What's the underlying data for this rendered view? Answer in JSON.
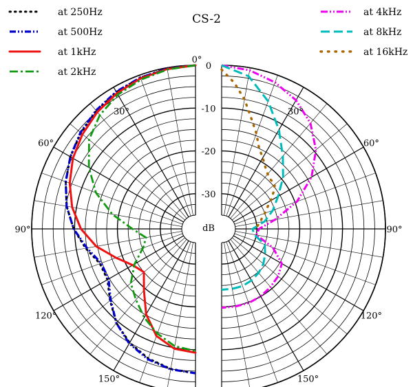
{
  "chart_data": {
    "type": "line",
    "subtype": "polar",
    "title": "CS-2",
    "radial_unit": "dB",
    "radial_ticks": [
      "0",
      "-10",
      "-20",
      "-30"
    ],
    "radial_range": [
      -35,
      0
    ],
    "angle_ticks_left": [
      "0°",
      "30°",
      "60°",
      "90°",
      "120°",
      "150°"
    ],
    "angle_ticks_right": [
      "0°",
      "30°",
      "60°",
      "90°",
      "120°",
      "150°"
    ],
    "grid": true,
    "legend_left": [
      "at 250Hz",
      "at 500Hz",
      "at 1kHz",
      "at 2kHz"
    ],
    "legend_right": [
      "at 4kHz",
      "at 8kHz",
      "at 16kHz"
    ],
    "series": [
      {
        "name": "at 250Hz",
        "side": "left",
        "color": "#000000",
        "angles": [
          0,
          10,
          20,
          30,
          40,
          50,
          60,
          70,
          80,
          90,
          100,
          110,
          120,
          130,
          140,
          150,
          160,
          170,
          180
        ],
        "values": [
          0,
          -0.2,
          -0.6,
          -1.3,
          -2.2,
          -3.3,
          -4.5,
          -6,
          -7.7,
          -9.8,
          -12.2,
          -14.5,
          -14.5,
          -12.2,
          -9.5,
          -7.5,
          -6,
          -5,
          -4.5
        ]
      },
      {
        "name": "at 500Hz",
        "side": "left",
        "color": "#0000cc",
        "angles": [
          0,
          10,
          20,
          30,
          40,
          50,
          60,
          70,
          80,
          90,
          100,
          110,
          120,
          130,
          140,
          150,
          160,
          170,
          180
        ],
        "values": [
          0,
          -0.2,
          -0.6,
          -1.2,
          -2.1,
          -3.2,
          -4.5,
          -6,
          -7.7,
          -9.8,
          -12.5,
          -14.8,
          -14.8,
          -12.4,
          -9.5,
          -7.3,
          -5.8,
          -4.9,
          -4.5
        ]
      },
      {
        "name": "at 1kHz",
        "side": "left",
        "color": "#ee1111",
        "angles": [
          0,
          10,
          20,
          30,
          40,
          50,
          60,
          70,
          80,
          90,
          100,
          110,
          120,
          130,
          140,
          150,
          160,
          170,
          180
        ],
        "values": [
          0,
          -0.3,
          -0.8,
          -1.6,
          -2.6,
          -3.8,
          -5.2,
          -7,
          -9,
          -11.5,
          -14.7,
          -18.5,
          -21.3,
          -22.5,
          -19.5,
          -15.2,
          -11.6,
          -9.8,
          -9.3
        ]
      },
      {
        "name": "at 2kHz",
        "side": "left",
        "color": "#119911",
        "angles": [
          0,
          10,
          20,
          30,
          40,
          50,
          60,
          70,
          80,
          90,
          100,
          110,
          120,
          130,
          140,
          150,
          160,
          170,
          180
        ],
        "values": [
          0,
          -0.4,
          -1.1,
          -2,
          -3.5,
          -5.8,
          -9.5,
          -13.5,
          -18.5,
          -23.5,
          -26.5,
          -25.2,
          -21.8,
          -18.5,
          -16.6,
          -14.3,
          -12.2,
          -10.4,
          -9.7
        ]
      },
      {
        "name": "at 4kHz",
        "side": "right",
        "color": "#ee00ee",
        "angles": [
          0,
          10,
          20,
          30,
          40,
          50,
          60,
          70,
          80,
          90,
          100,
          110,
          120,
          130,
          140,
          150,
          160,
          170,
          180
        ],
        "values": [
          0,
          -0.6,
          -1.8,
          -3.5,
          -6,
          -9.5,
          -14,
          -19.5,
          -25.5,
          -29.5,
          -30,
          -25.5,
          -22,
          -21,
          -20.5,
          -20,
          -19.8,
          -19.8,
          -19.8
        ]
      },
      {
        "name": "at 8kHz",
        "side": "right",
        "color": "#00bbbb",
        "angles": [
          0,
          10,
          20,
          30,
          40,
          50,
          60,
          70,
          80,
          90,
          100,
          110,
          120,
          130,
          140,
          150,
          160,
          170,
          180
        ],
        "values": [
          0,
          -2,
          -6.5,
          -11.5,
          -16,
          -19.5,
          -23,
          -25.5,
          -28,
          -31,
          -30.5,
          -27.5,
          -26.5,
          -25.5,
          -24.8,
          -24.3,
          -24,
          -24,
          -24
        ]
      },
      {
        "name": "at 16kHz",
        "side": "right",
        "color": "#aa6600",
        "angles": [
          0,
          5,
          10,
          15,
          20,
          25,
          30,
          35,
          40,
          45,
          50,
          55,
          60,
          65,
          70,
          75,
          80,
          85,
          90
        ],
        "values": [
          -1,
          -4,
          -7.5,
          -11.5,
          -14.5,
          -17.5,
          -19,
          -20.5,
          -21.5,
          -22,
          -22,
          -23.5,
          -25,
          -26.5,
          -27.5,
          -28.5,
          -29,
          -29.8,
          -30
        ]
      }
    ]
  }
}
